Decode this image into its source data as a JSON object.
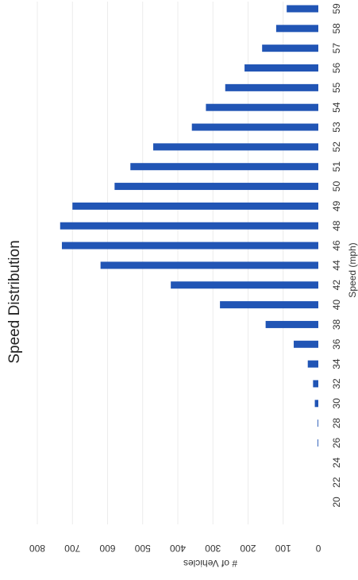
{
  "chart_data": {
    "type": "bar",
    "orientation": "horizontal-rotated",
    "title": "Speed Distribution",
    "xlabel": "Speed (mph)",
    "ylabel": "# of Vehicles",
    "categories": [
      "20",
      "22",
      "24",
      "26",
      "28",
      "30",
      "32",
      "34",
      "36",
      "38",
      "40",
      "42",
      "44",
      "46",
      "48",
      "49",
      "50",
      "51",
      "52",
      "53",
      "54",
      "55",
      "56",
      "57",
      "58",
      "59"
    ],
    "values": [
      0,
      0,
      0,
      2,
      2,
      10,
      15,
      30,
      70,
      150,
      280,
      420,
      620,
      730,
      735,
      700,
      580,
      535,
      470,
      360,
      320,
      265,
      210,
      160,
      120,
      90
    ],
    "ylim": [
      0,
      800
    ],
    "yticks": [
      "0",
      "100",
      "200",
      "300",
      "400",
      "500",
      "600",
      "700",
      "800"
    ],
    "bar_color": "#2155b5",
    "grid": true
  }
}
